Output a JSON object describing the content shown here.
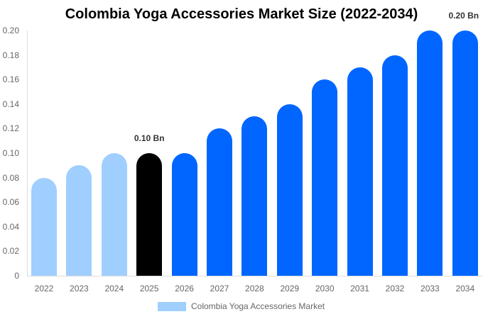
{
  "chart_data": {
    "type": "bar",
    "title": "Colombia Yoga Accessories Market Size (2022-2034)",
    "xlabel": "",
    "ylabel": "",
    "ylim": [
      0,
      0.2
    ],
    "yticks": [
      "0",
      "0.02",
      "0.04",
      "0.06",
      "0.08",
      "0.10",
      "0.12",
      "0.14",
      "0.16",
      "0.18",
      "0.20"
    ],
    "categories": [
      "2022",
      "2023",
      "2024",
      "2025",
      "2026",
      "2027",
      "2028",
      "2029",
      "2030",
      "2031",
      "2032",
      "2033",
      "2034"
    ],
    "series": [
      {
        "name": "Colombia Yoga Accessories Market",
        "values": [
          0.08,
          0.09,
          0.1,
          0.1,
          0.1,
          0.12,
          0.13,
          0.14,
          0.16,
          0.17,
          0.18,
          0.2,
          0.2
        ]
      }
    ],
    "bar_colors": [
      "#a0cfff",
      "#a0cfff",
      "#a0cfff",
      "#000000",
      "#0066ff",
      "#0066ff",
      "#0066ff",
      "#0066ff",
      "#0066ff",
      "#0066ff",
      "#0066ff",
      "#0066ff",
      "#0066ff"
    ],
    "annotations": [
      {
        "category": "2025",
        "text": "0.10 Bn"
      },
      {
        "category": "2034",
        "text": "0.20 Bn"
      }
    ],
    "grid": false,
    "legend_position": "bottom"
  },
  "legend": {
    "label": "Colombia Yoga Accessories Market",
    "color": "#a0cfff"
  }
}
